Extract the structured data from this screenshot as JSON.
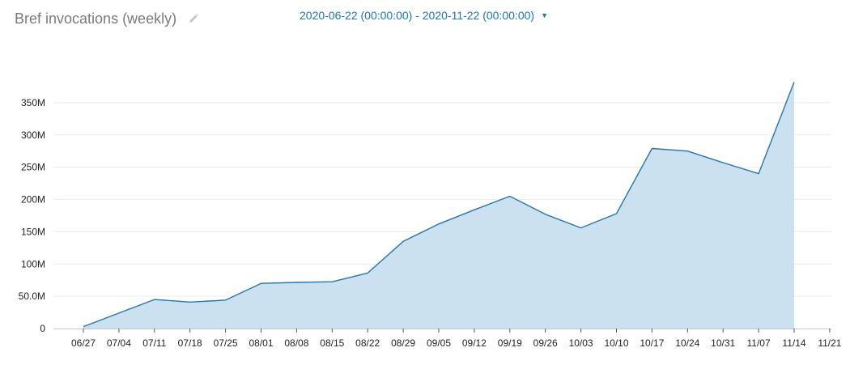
{
  "header": {
    "title": "Bref invocations (weekly)",
    "date_range": "2020-06-22 (00:00:00) - 2020-11-22 (00:00:00)"
  },
  "colors": {
    "line": "#1f78b4",
    "fill": "#cce1ef",
    "link": "#1a73b8",
    "grid": "#ececec"
  },
  "chart_data": {
    "type": "area",
    "x": [
      "06/27",
      "07/04",
      "07/11",
      "07/18",
      "07/25",
      "08/01",
      "08/08",
      "08/15",
      "08/22",
      "08/29",
      "09/05",
      "09/12",
      "09/19",
      "09/26",
      "10/03",
      "10/10",
      "10/17",
      "10/24",
      "10/31",
      "11/07",
      "11/14"
    ],
    "x_ticks": [
      "06/27",
      "07/04",
      "07/11",
      "07/18",
      "07/25",
      "08/01",
      "08/08",
      "08/15",
      "08/22",
      "08/29",
      "09/05",
      "09/12",
      "09/19",
      "09/26",
      "10/03",
      "10/10",
      "10/17",
      "10/24",
      "10/31",
      "11/07",
      "11/14",
      "11/21"
    ],
    "values": [
      3000000,
      24000000,
      45000000,
      41000000,
      44000000,
      70000000,
      71500000,
      72500000,
      86000000,
      135000000,
      162000000,
      184000000,
      205000000,
      177000000,
      156000000,
      178000000,
      279000000,
      275000000,
      257000000,
      240000000,
      382000000
    ],
    "ylim": [
      0,
      400000000
    ],
    "y_ticks": [
      0,
      50000000,
      100000000,
      150000000,
      200000000,
      250000000,
      300000000,
      350000000
    ],
    "y_tick_labels": [
      "0",
      "50.0M",
      "100M",
      "150M",
      "200M",
      "250M",
      "300M",
      "350M"
    ],
    "grid": true
  }
}
